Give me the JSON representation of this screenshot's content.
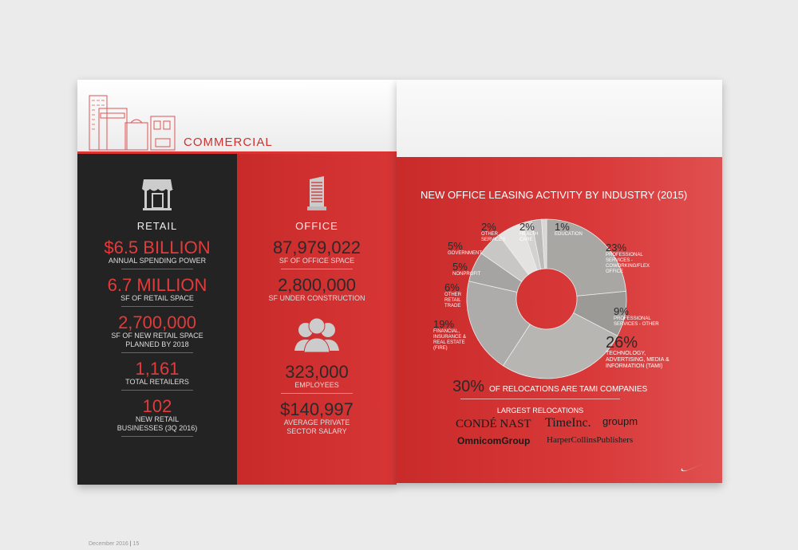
{
  "left_page": {
    "section_title": "COMMERCIAL",
    "retail": {
      "heading": "RETAIL",
      "stats": [
        {
          "value": "$6.5 BILLION",
          "label": "ANNUAL SPENDING POWER"
        },
        {
          "value": "6.7 MILLION",
          "label": "SF OF RETAIL SPACE"
        },
        {
          "value": "2,700,000",
          "label": "SF OF NEW RETAIL SPACE PLANNED BY 2018"
        },
        {
          "value": "1,161",
          "label": "TOTAL RETAILERS"
        },
        {
          "value": "102",
          "label": "NEW RETAIL BUSINESSES (3Q 2016)"
        }
      ]
    },
    "office": {
      "heading": "OFFICE",
      "stats": [
        {
          "value": "87,979,022",
          "label": "SF OF OFFICE SPACE"
        },
        {
          "value": "2,800,000",
          "label": "SF UNDER CONSTRUCTION"
        },
        {
          "value": "323,000",
          "label": "EMPLOYEES"
        },
        {
          "value": "$140,997",
          "label": "AVERAGE PRIVATE SECTOR SALARY"
        }
      ]
    },
    "footer": {
      "date": "December 2016",
      "page": "15"
    }
  },
  "right_page": {
    "relocation": {
      "value": "30%",
      "text": "OF RELOCATIONS ARE TAMI COMPANIES"
    },
    "largest_label": "LARGEST RELOCATIONS",
    "logos": [
      "CONDÉ NAST",
      "TimeInc.",
      "groupm",
      "OmnicomGroup",
      "HarperCollinsPublishers"
    ]
  },
  "chart_data": {
    "type": "pie",
    "title": "NEW OFFICE LEASING ACTIVITY BY INDUSTRY (2015)",
    "donut": true,
    "slices": [
      {
        "label": "PROFESSIONAL SERVICES - COWORKING/FLEX OFFICE",
        "value": 23,
        "display": "23%",
        "color": "#a9a7a4"
      },
      {
        "label": "PROFESSIONAL SERVICES - OTHER",
        "value": 9,
        "display": "9%",
        "color": "#9c9a97"
      },
      {
        "label": "TECHNOLOGY, ADVERTISING, MEDIA & INFORMATION (TAMI)",
        "value": 26,
        "display": "26%",
        "color": "#b8b6b3"
      },
      {
        "label": "FINANCIAL, INSURANCE & REAL ESTATE (FIRE)",
        "value": 19,
        "display": "19%",
        "color": "#aeacaa"
      },
      {
        "label": "OTHER RETAIL TRADE",
        "value": 6,
        "display": "6%",
        "color": "#a6a4a2"
      },
      {
        "label": "NONPROFIT",
        "value": 5,
        "display": "5%",
        "color": "#c9c7c5"
      },
      {
        "label": "GOVERNMENT",
        "value": 5,
        "display": "5%",
        "color": "#e4e3e2"
      },
      {
        "label": "OTHER SERVICES",
        "value": 2,
        "display": "2%",
        "color": "#d3d2d0"
      },
      {
        "label": "HEALTH CARE",
        "value": 2,
        "display": "2%",
        "color": "#bdbbb9"
      },
      {
        "label": "EDUCATION",
        "value": 1,
        "display": "1%",
        "color": "#d8d7d5"
      }
    ]
  }
}
